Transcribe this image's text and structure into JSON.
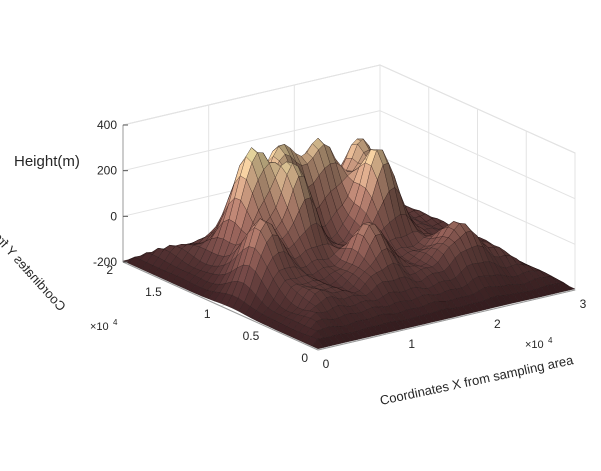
{
  "chart_data": {
    "type": "surface",
    "zlabel": "Height(m)",
    "xlabel": "Coordinates X  from sampling area",
    "ylabel": "Coordinates Y  from sampling area",
    "x_exponent_base": "×10",
    "x_exponent_power": "4",
    "y_exponent_base": "×10",
    "y_exponent_power": "4",
    "xlim": [
      0,
      3
    ],
    "ylim": [
      0,
      2
    ],
    "zlim": [
      -200,
      400
    ],
    "xticks": [
      "0",
      "1",
      "2",
      "3"
    ],
    "yticks": [
      "0",
      "0.5",
      "1",
      "1.5",
      "2"
    ],
    "zticks": [
      "-200",
      "0",
      "200",
      "400"
    ],
    "grid": true,
    "colormap": [
      "#3b1f22",
      "#5e3a39",
      "#8a5a52",
      "#b58370",
      "#d6b38c",
      "#ece8a6"
    ],
    "surface_peaks": [
      {
        "x": 0.7,
        "y": 1.3,
        "z": 365
      },
      {
        "x": 0.95,
        "y": 1.05,
        "z": 300
      },
      {
        "x": 1.15,
        "y": 1.4,
        "z": 320
      },
      {
        "x": 1.55,
        "y": 1.35,
        "z": 340
      },
      {
        "x": 1.85,
        "y": 1.0,
        "z": 335
      },
      {
        "x": 2.05,
        "y": 1.35,
        "z": 310
      },
      {
        "x": 0.4,
        "y": 0.9,
        "z": 180
      },
      {
        "x": 1.3,
        "y": 0.6,
        "z": 150
      },
      {
        "x": 2.15,
        "y": 0.45,
        "z": 110
      }
    ]
  }
}
